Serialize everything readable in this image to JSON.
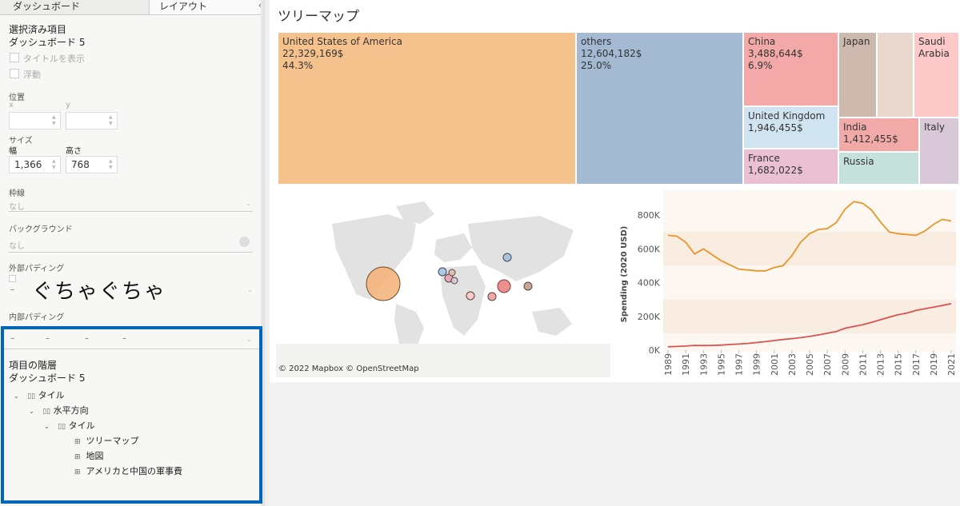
{
  "left_panel": {
    "tabs": [
      "ダッシュボード",
      "レイアウト"
    ],
    "collapse_glyph": "‹",
    "selected_header": "選択済み項目",
    "selected_name": "ダッシュボード 5",
    "show_title": "タイトルを表示",
    "floating": "浮動",
    "position_label": "位置",
    "x_label": "x",
    "y_label": "y",
    "size_label": "サイズ",
    "width_label": "幅",
    "height_label": "高さ",
    "width_value": "1,366",
    "height_value": "768",
    "border_label": "枠線",
    "border_value": "なし",
    "background_label": "バックグラウンド",
    "background_value": "なし",
    "outer_padding_label": "外部パディング",
    "inner_padding_label": "内部パディング",
    "padding_dash": "–",
    "overlay_text": "ぐちゃぐちゃ",
    "hierarchy": {
      "title": "項目の階層",
      "dashboard": "ダッシュボード 5",
      "nodes": [
        "タイル",
        "水平方向",
        "タイル",
        "ツリーマップ",
        "地図",
        "アメリカと中国の軍事費"
      ]
    }
  },
  "main": {
    "title": "ツリーマップ",
    "treemap": [
      {
        "name": "United States of America",
        "value": "22,329,169$",
        "pct": "44.3%",
        "color": "#f5c28e"
      },
      {
        "name": "others",
        "value": "12,604,182$",
        "pct": "25.0%",
        "color": "#a4b9d2"
      },
      {
        "name": "China",
        "value": "3,488,644$",
        "pct": "6.9%",
        "color": "#f2a9a8"
      },
      {
        "name": "United Kingdom",
        "value": "1,946,455$",
        "color": "#cfe3f0"
      },
      {
        "name": "France",
        "value": "1,682,022$",
        "color": "#eac0d2"
      },
      {
        "name": "Japan",
        "color": "#cdb9ad"
      },
      {
        "name": "",
        "color": "#ead7cd"
      },
      {
        "name": "Saudi Arabia",
        "color": "#fdc9c9"
      },
      {
        "name": "India",
        "value": "1,412,455$",
        "color": "#f2aaa9"
      },
      {
        "name": "Italy",
        "color": "#d8c8d8"
      },
      {
        "name": "Russia",
        "color": "#c4e1dc"
      }
    ],
    "map_credit": "© 2022 Mapbox © OpenStreetMap",
    "chart_data": {
      "type": "line",
      "ylabel": "Spending (2020 USD)",
      "ylim": [
        0,
        900000
      ],
      "yticks": [
        "0K",
        "200K",
        "400K",
        "600K",
        "800K"
      ],
      "x": [
        1989,
        1990,
        1991,
        1992,
        1993,
        1994,
        1995,
        1996,
        1997,
        1998,
        1999,
        2000,
        2001,
        2002,
        2003,
        2004,
        2005,
        2006,
        2007,
        2008,
        2009,
        2010,
        2011,
        2012,
        2013,
        2014,
        2015,
        2016,
        2017,
        2018,
        2019,
        2020,
        2021
      ],
      "xticks": [
        "1989",
        "1991",
        "1993",
        "1995",
        "1997",
        "1999",
        "2001",
        "2003",
        "2005",
        "2007",
        "2009",
        "2011",
        "2013",
        "2015",
        "2017",
        "2019",
        "2021"
      ],
      "series": [
        {
          "color": "#e8952a",
          "values": [
            680000,
            675000,
            640000,
            570000,
            600000,
            565000,
            530000,
            505000,
            480000,
            475000,
            470000,
            470000,
            490000,
            500000,
            560000,
            640000,
            690000,
            715000,
            720000,
            755000,
            835000,
            880000,
            870000,
            830000,
            760000,
            700000,
            690000,
            685000,
            680000,
            705000,
            745000,
            775000,
            765000
          ]
        },
        {
          "color": "#d9534f",
          "values": [
            20000,
            22000,
            24000,
            28000,
            27000,
            28000,
            30000,
            33000,
            36000,
            40000,
            45000,
            50000,
            57000,
            63000,
            68000,
            74000,
            81000,
            90000,
            100000,
            110000,
            130000,
            140000,
            150000,
            165000,
            180000,
            195000,
            210000,
            220000,
            235000,
            245000,
            255000,
            265000,
            275000
          ]
        }
      ]
    }
  }
}
